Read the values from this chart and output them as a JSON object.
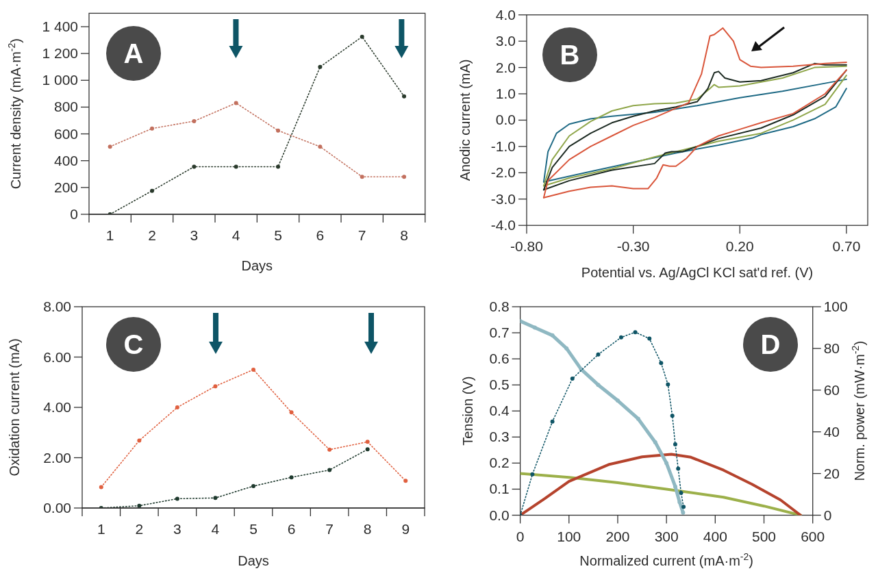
{
  "chart_data": [
    {
      "type": "line",
      "xlabel": "Days",
      "ylabel": "Current density (mA·m$^{-2}$)",
      "categories": [
        "1",
        "2",
        "3",
        "4",
        "5",
        "6",
        "7",
        "8"
      ],
      "ylim": [
        0,
        1500
      ],
      "yticks": [
        0,
        200,
        400,
        600,
        800,
        {
          "value": 1000,
          "label": "1 000"
        },
        {
          "value": 1200,
          "label": "1 200"
        },
        {
          "value": 1400,
          "label": "1 400"
        }
      ],
      "marker": "circle",
      "line_style": "dotted",
      "annotations": [
        "A"
      ],
      "series": [
        {
          "color": "#c2705e",
          "values": [
            505,
            640,
            695,
            830,
            625,
            505,
            280,
            280
          ]
        },
        {
          "color": "#2a3a2c",
          "values": [
            0,
            175,
            355,
            355,
            355,
            1100,
            1325,
            880
          ]
        }
      ]
    },
    {
      "type": "line",
      "xlabel": "Potential vs. Ag/AgCl KCl sat'd ref. (V)",
      "ylabel": "Anodic current (mA)",
      "xlim": [
        -0.8,
        0.8
      ],
      "xticks": [
        {
          "value": -0.8,
          "label": "-0.80"
        },
        {
          "value": -0.3,
          "label": "-0.30"
        },
        {
          "value": 0.2,
          "label": "0.20"
        },
        {
          "value": 0.7,
          "label": "0.70"
        }
      ],
      "ylim": [
        -4,
        4
      ],
      "yticks": [
        {
          "value": -4,
          "label": "-4.0"
        },
        {
          "value": -3,
          "label": "-3.0"
        },
        {
          "value": -2,
          "label": "-2.0"
        },
        {
          "value": -1,
          "label": "-1.0"
        },
        {
          "value": 0,
          "label": "0.0"
        },
        {
          "value": 1,
          "label": "1.0"
        },
        {
          "value": 2,
          "label": "2.0"
        },
        {
          "value": 3,
          "label": "3.0"
        },
        {
          "value": 4,
          "label": "4.0"
        }
      ],
      "line_style": "solid",
      "annotations": [
        "B"
      ],
      "series": [
        {
          "color": "#1f6a85",
          "x": [
            -0.72,
            -0.7,
            -0.66,
            -0.6,
            -0.5,
            -0.4,
            -0.2,
            0.0,
            0.2,
            0.4,
            0.6,
            0.7
          ],
          "values": [
            -2.35,
            -1.2,
            -0.5,
            -0.15,
            0.05,
            0.15,
            0.3,
            0.55,
            0.85,
            1.1,
            1.4,
            1.55
          ]
        },
        {
          "color": "#1f6a85",
          "x": [
            -0.72,
            -0.5,
            -0.3,
            -0.1,
            0.1,
            0.26,
            0.3,
            0.45,
            0.55,
            0.65,
            0.7
          ],
          "values": [
            -2.35,
            -1.95,
            -1.6,
            -1.25,
            -0.95,
            -0.68,
            -0.55,
            -0.25,
            0.05,
            0.5,
            1.2
          ]
        },
        {
          "color": "#8fa64a",
          "x": [
            -0.72,
            -0.68,
            -0.6,
            -0.5,
            -0.4,
            -0.3,
            -0.2,
            -0.1,
            0.0,
            0.06,
            0.08,
            0.1,
            0.2,
            0.4,
            0.55,
            0.7
          ],
          "values": [
            -2.5,
            -1.5,
            -0.6,
            -0.05,
            0.35,
            0.55,
            0.62,
            0.65,
            0.8,
            1.2,
            1.35,
            1.25,
            1.3,
            1.6,
            2.0,
            2.05
          ]
        },
        {
          "color": "#8fa64a",
          "x": [
            -0.72,
            -0.6,
            -0.4,
            -0.2,
            -0.05,
            0.1,
            0.3,
            0.45,
            0.6,
            0.7
          ],
          "values": [
            -2.5,
            -2.2,
            -1.85,
            -1.4,
            -1.1,
            -0.8,
            -0.5,
            0.0,
            0.6,
            1.7
          ]
        },
        {
          "color": "#1c2a22",
          "x": [
            -0.72,
            -0.68,
            -0.6,
            -0.5,
            -0.4,
            -0.3,
            -0.2,
            -0.1,
            0.0,
            0.05,
            0.08,
            0.1,
            0.13,
            0.2,
            0.3,
            0.45,
            0.55,
            0.6,
            0.7
          ],
          "values": [
            -2.65,
            -1.8,
            -1.0,
            -0.5,
            -0.1,
            0.15,
            0.35,
            0.5,
            0.7,
            1.2,
            1.8,
            1.85,
            1.6,
            1.45,
            1.5,
            1.8,
            2.15,
            2.1,
            2.1
          ]
        },
        {
          "color": "#1c2a22",
          "x": [
            -0.72,
            -0.6,
            -0.4,
            -0.2,
            -0.15,
            -0.12,
            -0.07,
            0.0,
            0.1,
            0.3,
            0.45,
            0.6,
            0.7
          ],
          "values": [
            -2.65,
            -2.3,
            -1.9,
            -1.65,
            -1.25,
            -1.2,
            -1.2,
            -1.0,
            -0.7,
            -0.3,
            0.2,
            0.9,
            1.9
          ]
        },
        {
          "color": "#d9553a",
          "x": [
            -0.72,
            -0.7,
            -0.6,
            -0.5,
            -0.4,
            -0.3,
            -0.2,
            -0.1,
            -0.04,
            0.02,
            0.06,
            0.08,
            0.12,
            0.17,
            0.2,
            0.25,
            0.3,
            0.45,
            0.6,
            0.7
          ],
          "values": [
            -2.95,
            -2.3,
            -1.5,
            -1.0,
            -0.6,
            -0.2,
            0.1,
            0.45,
            0.66,
            1.75,
            3.2,
            3.25,
            3.5,
            3.0,
            2.3,
            2.05,
            2.0,
            2.05,
            2.15,
            2.2
          ]
        },
        {
          "color": "#d9553a",
          "x": [
            -0.72,
            -0.6,
            -0.5,
            -0.4,
            -0.3,
            -0.23,
            -0.19,
            -0.16,
            -0.13,
            -0.1,
            -0.05,
            0.0,
            0.1,
            0.2,
            0.3,
            0.45,
            0.6,
            0.7
          ],
          "values": [
            -2.95,
            -2.7,
            -2.55,
            -2.5,
            -2.6,
            -2.6,
            -2.2,
            -1.7,
            -1.75,
            -1.75,
            -1.45,
            -1.0,
            -0.6,
            -0.35,
            -0.1,
            0.25,
            1.0,
            1.9
          ]
        }
      ]
    },
    {
      "type": "line",
      "xlabel": "Days",
      "ylabel": "Oxidation current (mA)",
      "categories": [
        "1",
        "2",
        "3",
        "4",
        "5",
        "6",
        "7",
        "8",
        "9"
      ],
      "ylim": [
        0,
        8
      ],
      "yticks": [
        {
          "value": 0,
          "label": "0.00"
        },
        {
          "value": 2,
          "label": "2.00"
        },
        {
          "value": 4,
          "label": "4.00"
        },
        {
          "value": 6,
          "label": "6.00"
        },
        {
          "value": 8,
          "label": "8.00"
        }
      ],
      "marker": "circle",
      "line_style": "dotted",
      "annotations": [
        "C"
      ],
      "series": [
        {
          "color": "#e0603f",
          "values": [
            0.83,
            2.68,
            4.0,
            4.84,
            5.5,
            3.8,
            2.32,
            2.63,
            1.08
          ]
        },
        {
          "color": "#1f3a2e",
          "values": [
            0,
            0.09,
            0.37,
            0.4,
            0.87,
            1.22,
            1.51,
            2.33,
            null
          ]
        }
      ]
    },
    {
      "type": "line",
      "xlabel": "Normalized current (mA·m$^{-2}$)",
      "ylabel": "Tension (V)",
      "y2label": "Norm. power (mW·m$^{-2}$)",
      "xlim": [
        0,
        600
      ],
      "xticks": [
        0,
        100,
        200,
        300,
        400,
        500,
        600
      ],
      "ylim": [
        0,
        0.8
      ],
      "yticks": [
        {
          "value": 0,
          "label": "0.0"
        },
        0.1,
        0.2,
        0.3,
        0.4,
        0.5,
        0.6,
        0.7,
        0.8
      ],
      "y2lim": [
        0,
        100
      ],
      "y2ticks": [
        0,
        20,
        40,
        60,
        80,
        100
      ],
      "annotations": [
        "D"
      ],
      "series": [
        {
          "color": "#9cb04a",
          "line_style": "solid",
          "marker": "none",
          "x": [
            0,
            100,
            200,
            300,
            417,
            500,
            575
          ],
          "values": [
            0.16,
            0.145,
            0.125,
            0.1,
            0.069,
            0.035,
            0.0
          ]
        },
        {
          "color": "#b5432d",
          "axis": "y2",
          "line_style": "solid",
          "marker": "none",
          "x": [
            0,
            50,
            100,
            183,
            250,
            310,
            350,
            417,
            476,
            534,
            575
          ],
          "values": [
            0,
            7.9,
            16.2,
            24.4,
            28,
            29.2,
            27.8,
            21.6,
            14.8,
            7.3,
            0
          ]
        },
        {
          "color": "#8fb8c2",
          "line_style": "solid",
          "marker": "circle",
          "x": [
            0,
            30,
            66,
            95,
            125,
            160,
            200,
            242,
            277,
            300,
            318,
            327,
            334
          ],
          "values": [
            0.745,
            0.72,
            0.69,
            0.64,
            0.56,
            0.5,
            0.44,
            0.37,
            0.28,
            0.2,
            0.11,
            0.05,
            0.01
          ]
        },
        {
          "color": "#0f5566",
          "axis": "y2",
          "line_style": "dotted",
          "marker": "circle",
          "x": [
            0,
            25,
            66,
            107,
            160,
            207,
            236,
            265,
            289,
            303,
            312,
            318,
            324,
            330,
            335
          ],
          "values": [
            0,
            19.6,
            44.9,
            65.5,
            77.1,
            85.3,
            87.8,
            84.7,
            73,
            62.7,
            47.7,
            34,
            22.3,
            10.7,
            4
          ]
        }
      ]
    }
  ]
}
